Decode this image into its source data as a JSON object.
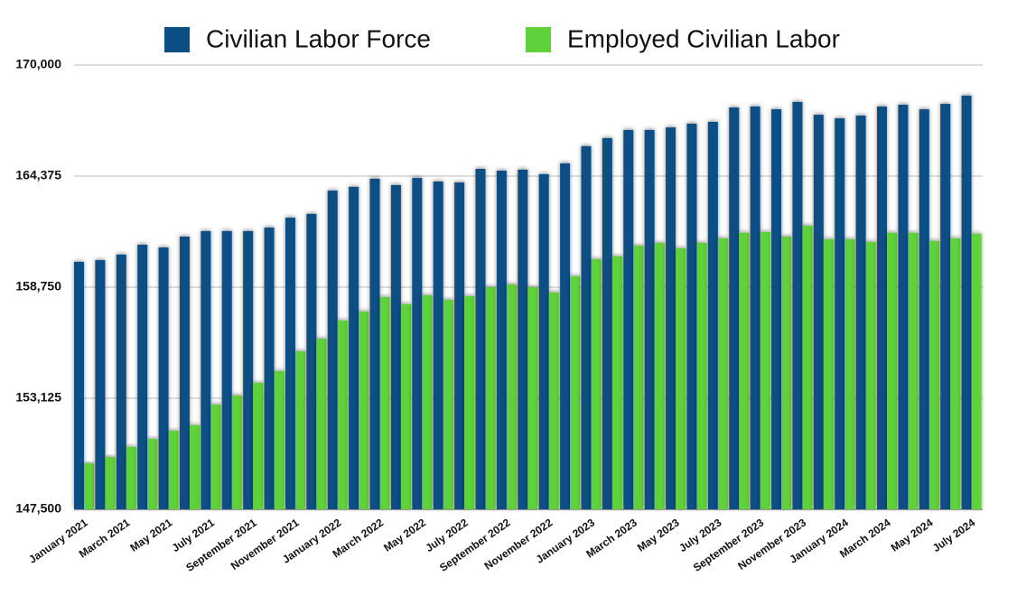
{
  "chart_data": {
    "type": "bar",
    "categories": [
      "January 2021",
      null,
      "March 2021",
      null,
      "May 2021",
      null,
      "July 2021",
      null,
      "September 2021",
      null,
      "November 2021",
      null,
      "January 2022",
      null,
      "March 2022",
      null,
      "May 2022",
      null,
      "July 2022",
      null,
      "September 2022",
      null,
      "November 2022",
      null,
      "January 2023",
      null,
      "March 2023",
      null,
      "May 2023",
      null,
      "July 2023",
      null,
      "September 2023",
      null,
      "November 2023",
      null,
      "January 2024",
      null,
      "March 2024",
      null,
      "May 2024",
      null,
      "July 2024"
    ],
    "series": [
      {
        "name": "Civilian Labor Force",
        "color": "#0b4f84",
        "values": [
          160030,
          160120,
          160400,
          160900,
          160760,
          161310,
          161590,
          161590,
          161590,
          161770,
          162270,
          162460,
          163640,
          163830,
          164240,
          163920,
          164280,
          164100,
          164050,
          164740,
          164650,
          164700,
          164470,
          165020,
          165890,
          166300,
          166710,
          166710,
          166840,
          167030,
          167120,
          167850,
          167900,
          167760,
          168130,
          167480,
          167300,
          167440,
          167900,
          167990,
          167760,
          168030,
          168450
        ]
      },
      {
        "name": "Employed Civilian Labor",
        "color": "#5fd13a",
        "values": [
          149830,
          150150,
          150660,
          151070,
          151480,
          151750,
          152800,
          153260,
          153900,
          154500,
          155500,
          156140,
          157060,
          157510,
          158250,
          157880,
          158340,
          158110,
          158290,
          158750,
          158890,
          158750,
          158480,
          159300,
          160170,
          160310,
          160850,
          160990,
          160720,
          160990,
          161220,
          161500,
          161540,
          161310,
          161860,
          161180,
          161180,
          161040,
          161500,
          161500,
          161090,
          161220,
          161450
        ]
      }
    ],
    "ylim": [
      147500,
      170000
    ],
    "yticks": [
      {
        "value": 147500,
        "label": "147,500"
      },
      {
        "value": 153125,
        "label": "153,125"
      },
      {
        "value": 158750,
        "label": "158,750"
      },
      {
        "value": 164375,
        "label": "164,375"
      },
      {
        "value": 170000,
        "label": "170,000"
      }
    ],
    "grid": true,
    "legend": "top"
  }
}
